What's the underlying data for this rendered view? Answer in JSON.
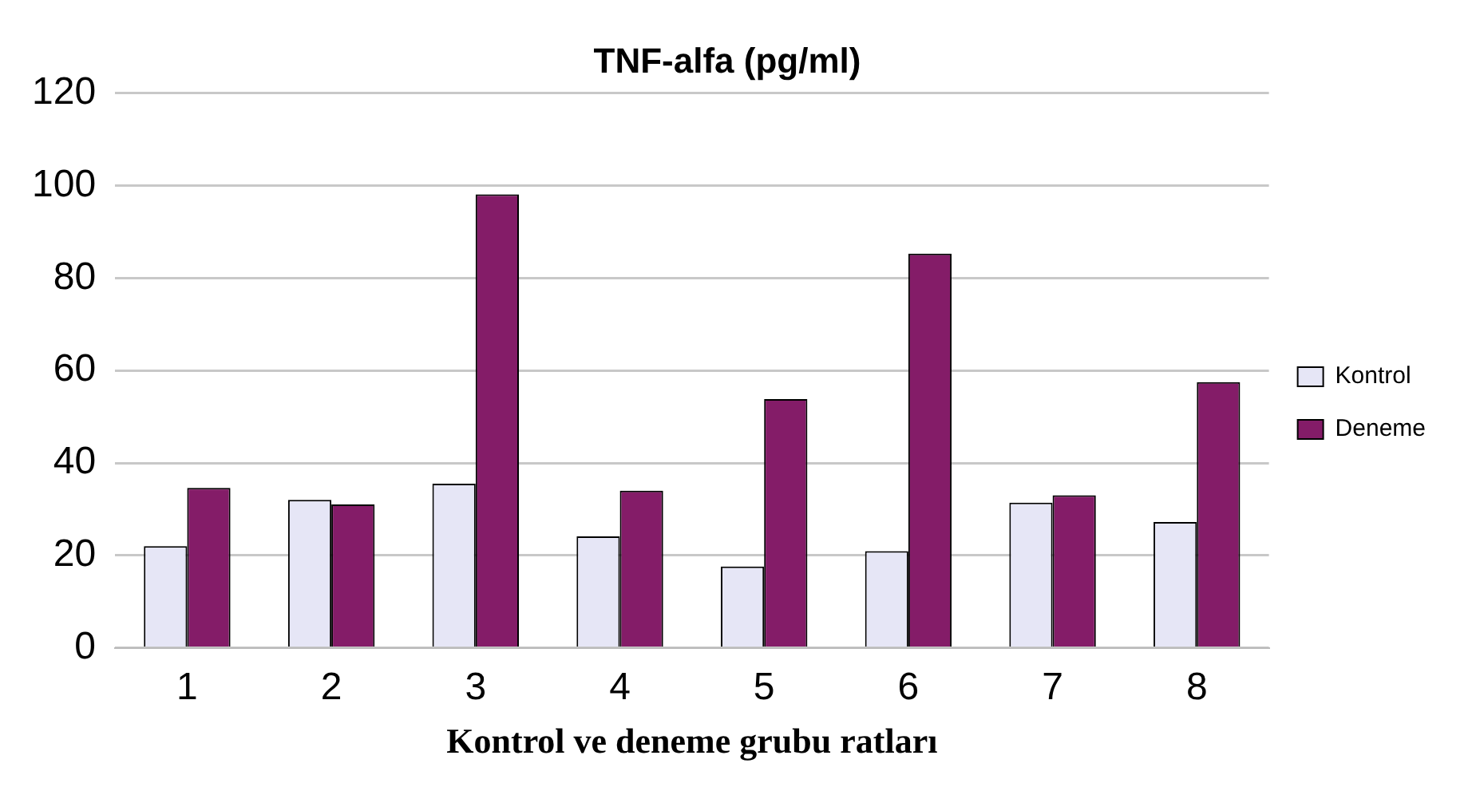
{
  "chart_data": {
    "type": "bar",
    "title": "TNF-alfa (pg/ml)",
    "xlabel": "Kontrol ve deneme grubu ratları",
    "categories": [
      "1",
      "2",
      "3",
      "4",
      "5",
      "6",
      "7",
      "8"
    ],
    "series": [
      {
        "name": "Kontrol",
        "color": "#e6e6f6",
        "values": [
          22.0,
          32.0,
          35.5,
          24.1,
          17.6,
          20.9,
          31.4,
          27.2
        ]
      },
      {
        "name": "Deneme",
        "color": "#841c68",
        "values": [
          34.6,
          31.0,
          98.1,
          34.0,
          53.8,
          85.3,
          33.0,
          57.5
        ]
      }
    ],
    "ylim": [
      0,
      120
    ],
    "yticks": [
      0,
      20,
      40,
      60,
      80,
      100,
      120
    ],
    "grid": "y",
    "legend": "right"
  }
}
